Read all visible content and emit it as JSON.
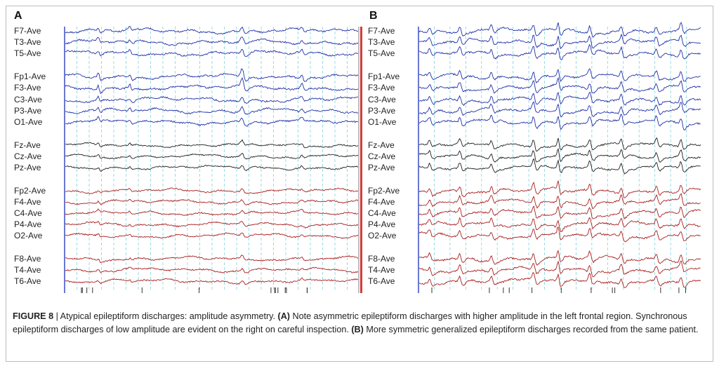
{
  "panels": [
    {
      "letter": "A",
      "channels": [
        {
          "label": "F7-Ave",
          "group": "left_temporal"
        },
        {
          "label": "T3-Ave",
          "group": "left_temporal"
        },
        {
          "label": "T5-Ave",
          "group": "left_temporal"
        },
        {
          "label": "Fp1-Ave",
          "group": "left_parasagittal"
        },
        {
          "label": "F3-Ave",
          "group": "left_parasagittal"
        },
        {
          "label": "C3-Ave",
          "group": "left_parasagittal"
        },
        {
          "label": "P3-Ave",
          "group": "left_parasagittal"
        },
        {
          "label": "O1-Ave",
          "group": "left_parasagittal"
        },
        {
          "label": "Fz-Ave",
          "group": "midline"
        },
        {
          "label": "Cz-Ave",
          "group": "midline"
        },
        {
          "label": "Pz-Ave",
          "group": "midline"
        },
        {
          "label": "Fp2-Ave",
          "group": "right_parasagittal"
        },
        {
          "label": "F4-Ave",
          "group": "right_parasagittal"
        },
        {
          "label": "C4-Ave",
          "group": "right_parasagittal"
        },
        {
          "label": "P4-Ave",
          "group": "right_parasagittal"
        },
        {
          "label": "O2-Ave",
          "group": "right_parasagittal"
        },
        {
          "label": "F8-Ave",
          "group": "right_temporal"
        },
        {
          "label": "T4-Ave",
          "group": "right_temporal"
        },
        {
          "label": "T6-Ave",
          "group": "right_temporal"
        }
      ]
    },
    {
      "letter": "B",
      "channels": [
        {
          "label": "F7-Ave",
          "group": "left_temporal"
        },
        {
          "label": "T3-Ave",
          "group": "left_temporal"
        },
        {
          "label": "T5-Ave",
          "group": "left_temporal"
        },
        {
          "label": "Fp1-Ave",
          "group": "left_parasagittal"
        },
        {
          "label": "F3-Ave",
          "group": "left_parasagittal"
        },
        {
          "label": "C3-Ave",
          "group": "left_parasagittal"
        },
        {
          "label": "P3-Ave",
          "group": "left_parasagittal"
        },
        {
          "label": "O1-Ave",
          "group": "left_parasagittal"
        },
        {
          "label": "Fz-Ave",
          "group": "midline"
        },
        {
          "label": "Cz-Ave",
          "group": "midline"
        },
        {
          "label": "Pz-Ave",
          "group": "midline"
        },
        {
          "label": "Fp2-Ave",
          "group": "right_parasagittal"
        },
        {
          "label": "F4-Ave",
          "group": "right_parasagittal"
        },
        {
          "label": "C4-Ave",
          "group": "right_parasagittal"
        },
        {
          "label": "P4-Ave",
          "group": "right_parasagittal"
        },
        {
          "label": "O2-Ave",
          "group": "right_parasagittal"
        },
        {
          "label": "F8-Ave",
          "group": "right_temporal"
        },
        {
          "label": "T4-Ave",
          "group": "right_temporal"
        },
        {
          "label": "T6-Ave",
          "group": "right_temporal"
        }
      ]
    }
  ],
  "colors": {
    "left": "#1f2fa8",
    "midline": "#1e1e1e",
    "right": "#a81f1f",
    "gridline": "#7fd3dc",
    "page_marker_blue": "#2a3fbf",
    "page_marker_red": "#d23c3c"
  },
  "caption": {
    "figure_label": "FIGURE 8",
    "separator": " | ",
    "intro": "Atypical epileptiform discharges: amplitude asymmetry. ",
    "label_a": "(A)",
    "text_a": " Note asymmetric epileptiform discharges with higher amplitude in the left frontal region. Synchronous epileptiform discharges of low amplitude are evident on the right on careful inspection. ",
    "label_b": "(B)",
    "text_b": " More symmetric generalized epileptiform discharges recorded from the same patient."
  }
}
